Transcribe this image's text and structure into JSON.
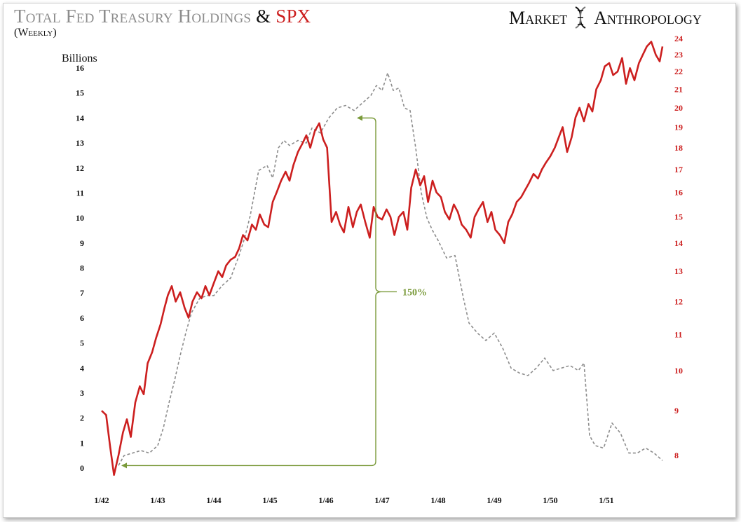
{
  "header": {
    "title_main": "Total Fed Treasury Holdings",
    "title_amp": "&",
    "title_spx": "SPX",
    "subtitle": "(Weekly)",
    "brand_left": "Market",
    "brand_right": "Anthropology"
  },
  "colors": {
    "fed_series": "#8c8c8c",
    "spx_series": "#cc1f1f",
    "annotation": "#7a9a3a",
    "axis_text": "#111111"
  },
  "chart_data": {
    "type": "line",
    "title": "Total Fed Treasury Holdings & SPX",
    "subtitle": "(Weekly)",
    "x_ticks": [
      "1/42",
      "1/43",
      "1/44",
      "1/45",
      "1/46",
      "1/47",
      "1/48",
      "1/49",
      "1/50",
      "1/51"
    ],
    "xlim": [
      1942.0,
      1952.0
    ],
    "left_axis": {
      "label": "Billions",
      "ticks": [
        0,
        1,
        2,
        3,
        4,
        5,
        6,
        7,
        8,
        9,
        10,
        11,
        12,
        13,
        14,
        15,
        16
      ],
      "ylim": [
        0,
        16
      ]
    },
    "right_axis": {
      "scale": "log",
      "ticks": [
        8,
        9,
        10,
        11,
        12,
        13,
        14,
        15,
        16,
        17,
        18,
        19,
        20,
        21,
        22,
        23,
        24
      ],
      "ylim": [
        7.5,
        24
      ]
    },
    "series": [
      {
        "name": "Total Fed Treasury Holdings",
        "axis": "left",
        "style": "dashed",
        "x": [
          1942.3,
          1942.4,
          1942.55,
          1942.7,
          1942.85,
          1943.0,
          1943.1,
          1943.2,
          1943.3,
          1943.4,
          1943.5,
          1943.6,
          1943.75,
          1943.9,
          1944.0,
          1944.15,
          1944.3,
          1944.45,
          1944.55,
          1944.65,
          1944.8,
          1944.95,
          1945.05,
          1945.15,
          1945.25,
          1945.35,
          1945.5,
          1945.65,
          1945.75,
          1945.9,
          1946.05,
          1946.2,
          1946.35,
          1946.5,
          1946.65,
          1946.8,
          1946.9,
          1947.0,
          1947.1,
          1947.2,
          1947.3,
          1947.4,
          1947.5,
          1947.6,
          1947.7,
          1947.8,
          1947.9,
          1948.0,
          1948.15,
          1948.3,
          1948.45,
          1948.55,
          1948.7,
          1948.85,
          1949.0,
          1949.15,
          1949.3,
          1949.45,
          1949.6,
          1949.75,
          1949.9,
          1950.05,
          1950.2,
          1950.35,
          1950.5,
          1950.6,
          1950.7,
          1950.8,
          1950.95,
          1951.1,
          1951.25,
          1951.4,
          1951.55,
          1951.7,
          1951.85,
          1952.0
        ],
        "values": [
          0.1,
          0.5,
          0.6,
          0.7,
          0.6,
          0.9,
          1.6,
          2.6,
          3.5,
          4.5,
          5.4,
          6.2,
          6.8,
          6.9,
          6.9,
          7.3,
          7.6,
          8.5,
          9.2,
          10.1,
          11.9,
          12.1,
          11.6,
          12.8,
          13.1,
          12.9,
          13.1,
          13.0,
          13.6,
          13.4,
          14.0,
          14.4,
          14.5,
          14.3,
          14.6,
          14.9,
          15.3,
          15.1,
          15.8,
          15.1,
          15.2,
          14.4,
          14.3,
          12.8,
          11.0,
          10.0,
          9.5,
          9.1,
          8.4,
          8.5,
          6.8,
          5.8,
          5.4,
          5.1,
          5.4,
          4.8,
          4.0,
          3.8,
          3.7,
          4.0,
          4.4,
          3.9,
          4.0,
          4.1,
          3.9,
          4.2,
          1.3,
          0.9,
          0.8,
          1.8,
          1.4,
          0.6,
          0.6,
          0.8,
          0.6,
          0.3
        ]
      },
      {
        "name": "SPX",
        "axis": "right",
        "style": "solid",
        "x": [
          1942.0,
          1942.08,
          1942.15,
          1942.22,
          1942.3,
          1942.38,
          1942.45,
          1942.52,
          1942.6,
          1942.68,
          1942.75,
          1942.82,
          1942.9,
          1942.97,
          1943.05,
          1943.12,
          1943.18,
          1943.25,
          1943.32,
          1943.4,
          1943.48,
          1943.55,
          1943.62,
          1943.7,
          1943.78,
          1943.85,
          1943.92,
          1944.0,
          1944.08,
          1944.15,
          1944.22,
          1944.3,
          1944.38,
          1944.45,
          1944.52,
          1944.6,
          1944.68,
          1944.75,
          1944.82,
          1944.9,
          1944.97,
          1945.05,
          1945.12,
          1945.2,
          1945.28,
          1945.35,
          1945.42,
          1945.5,
          1945.58,
          1945.65,
          1945.72,
          1945.8,
          1945.88,
          1945.95,
          1946.02,
          1946.1,
          1946.18,
          1946.25,
          1946.32,
          1946.4,
          1946.48,
          1946.55,
          1946.62,
          1946.7,
          1946.78,
          1946.85,
          1946.92,
          1947.0,
          1947.08,
          1947.15,
          1947.22,
          1947.3,
          1947.38,
          1947.45,
          1947.52,
          1947.6,
          1947.68,
          1947.75,
          1947.82,
          1947.9,
          1947.97,
          1948.05,
          1948.12,
          1948.2,
          1948.28,
          1948.35,
          1948.42,
          1948.5,
          1948.58,
          1948.65,
          1948.72,
          1948.8,
          1948.88,
          1948.95,
          1949.02,
          1949.1,
          1949.18,
          1949.25,
          1949.32,
          1949.4,
          1949.48,
          1949.55,
          1949.62,
          1949.7,
          1949.78,
          1949.85,
          1949.92,
          1950.0,
          1950.08,
          1950.15,
          1950.22,
          1950.3,
          1950.38,
          1950.45,
          1950.52,
          1950.6,
          1950.68,
          1950.75,
          1950.82,
          1950.9,
          1950.97,
          1951.05,
          1951.12,
          1951.2,
          1951.28,
          1951.35,
          1951.42,
          1951.5,
          1951.58,
          1951.65,
          1951.72,
          1951.8,
          1951.88,
          1951.95,
          1952.0
        ],
        "values": [
          9.0,
          8.9,
          8.2,
          7.6,
          8.0,
          8.5,
          8.8,
          8.4,
          9.2,
          9.6,
          9.4,
          10.2,
          10.5,
          10.9,
          11.3,
          11.8,
          12.2,
          12.5,
          12.0,
          12.3,
          11.8,
          11.5,
          12.0,
          12.3,
          12.1,
          12.5,
          12.2,
          12.6,
          13.0,
          12.8,
          13.2,
          13.4,
          13.5,
          13.8,
          14.3,
          14.1,
          14.7,
          14.5,
          15.1,
          14.7,
          14.6,
          15.6,
          16.0,
          16.5,
          16.9,
          16.5,
          17.2,
          17.8,
          18.2,
          18.6,
          18.0,
          18.8,
          19.2,
          18.4,
          18.0,
          14.8,
          15.2,
          14.7,
          14.4,
          15.4,
          14.6,
          15.2,
          15.5,
          14.8,
          14.2,
          15.4,
          15.0,
          14.9,
          15.3,
          15.0,
          14.3,
          15.0,
          15.2,
          14.5,
          16.2,
          17.0,
          16.3,
          16.7,
          15.6,
          16.5,
          16.0,
          15.8,
          15.2,
          14.9,
          15.5,
          15.2,
          14.7,
          14.5,
          14.2,
          15.0,
          15.3,
          15.6,
          14.8,
          15.2,
          14.5,
          14.3,
          14.0,
          14.8,
          15.1,
          15.6,
          15.8,
          16.1,
          16.4,
          16.8,
          16.6,
          17.0,
          17.3,
          17.6,
          18.0,
          18.5,
          19.0,
          17.8,
          18.5,
          19.5,
          20.0,
          19.3,
          20.2,
          19.8,
          21.0,
          21.5,
          22.3,
          22.5,
          21.8,
          22.0,
          22.8,
          21.3,
          22.2,
          21.5,
          22.5,
          23.0,
          23.5,
          23.8,
          23.0,
          22.6,
          23.5
        ]
      }
    ],
    "annotations": [
      {
        "label": "150%",
        "from": {
          "x": 1942.3,
          "y_billions": 0.1
        },
        "to": {
          "x": 1946.5,
          "y_billions": 14.0
        }
      }
    ]
  }
}
